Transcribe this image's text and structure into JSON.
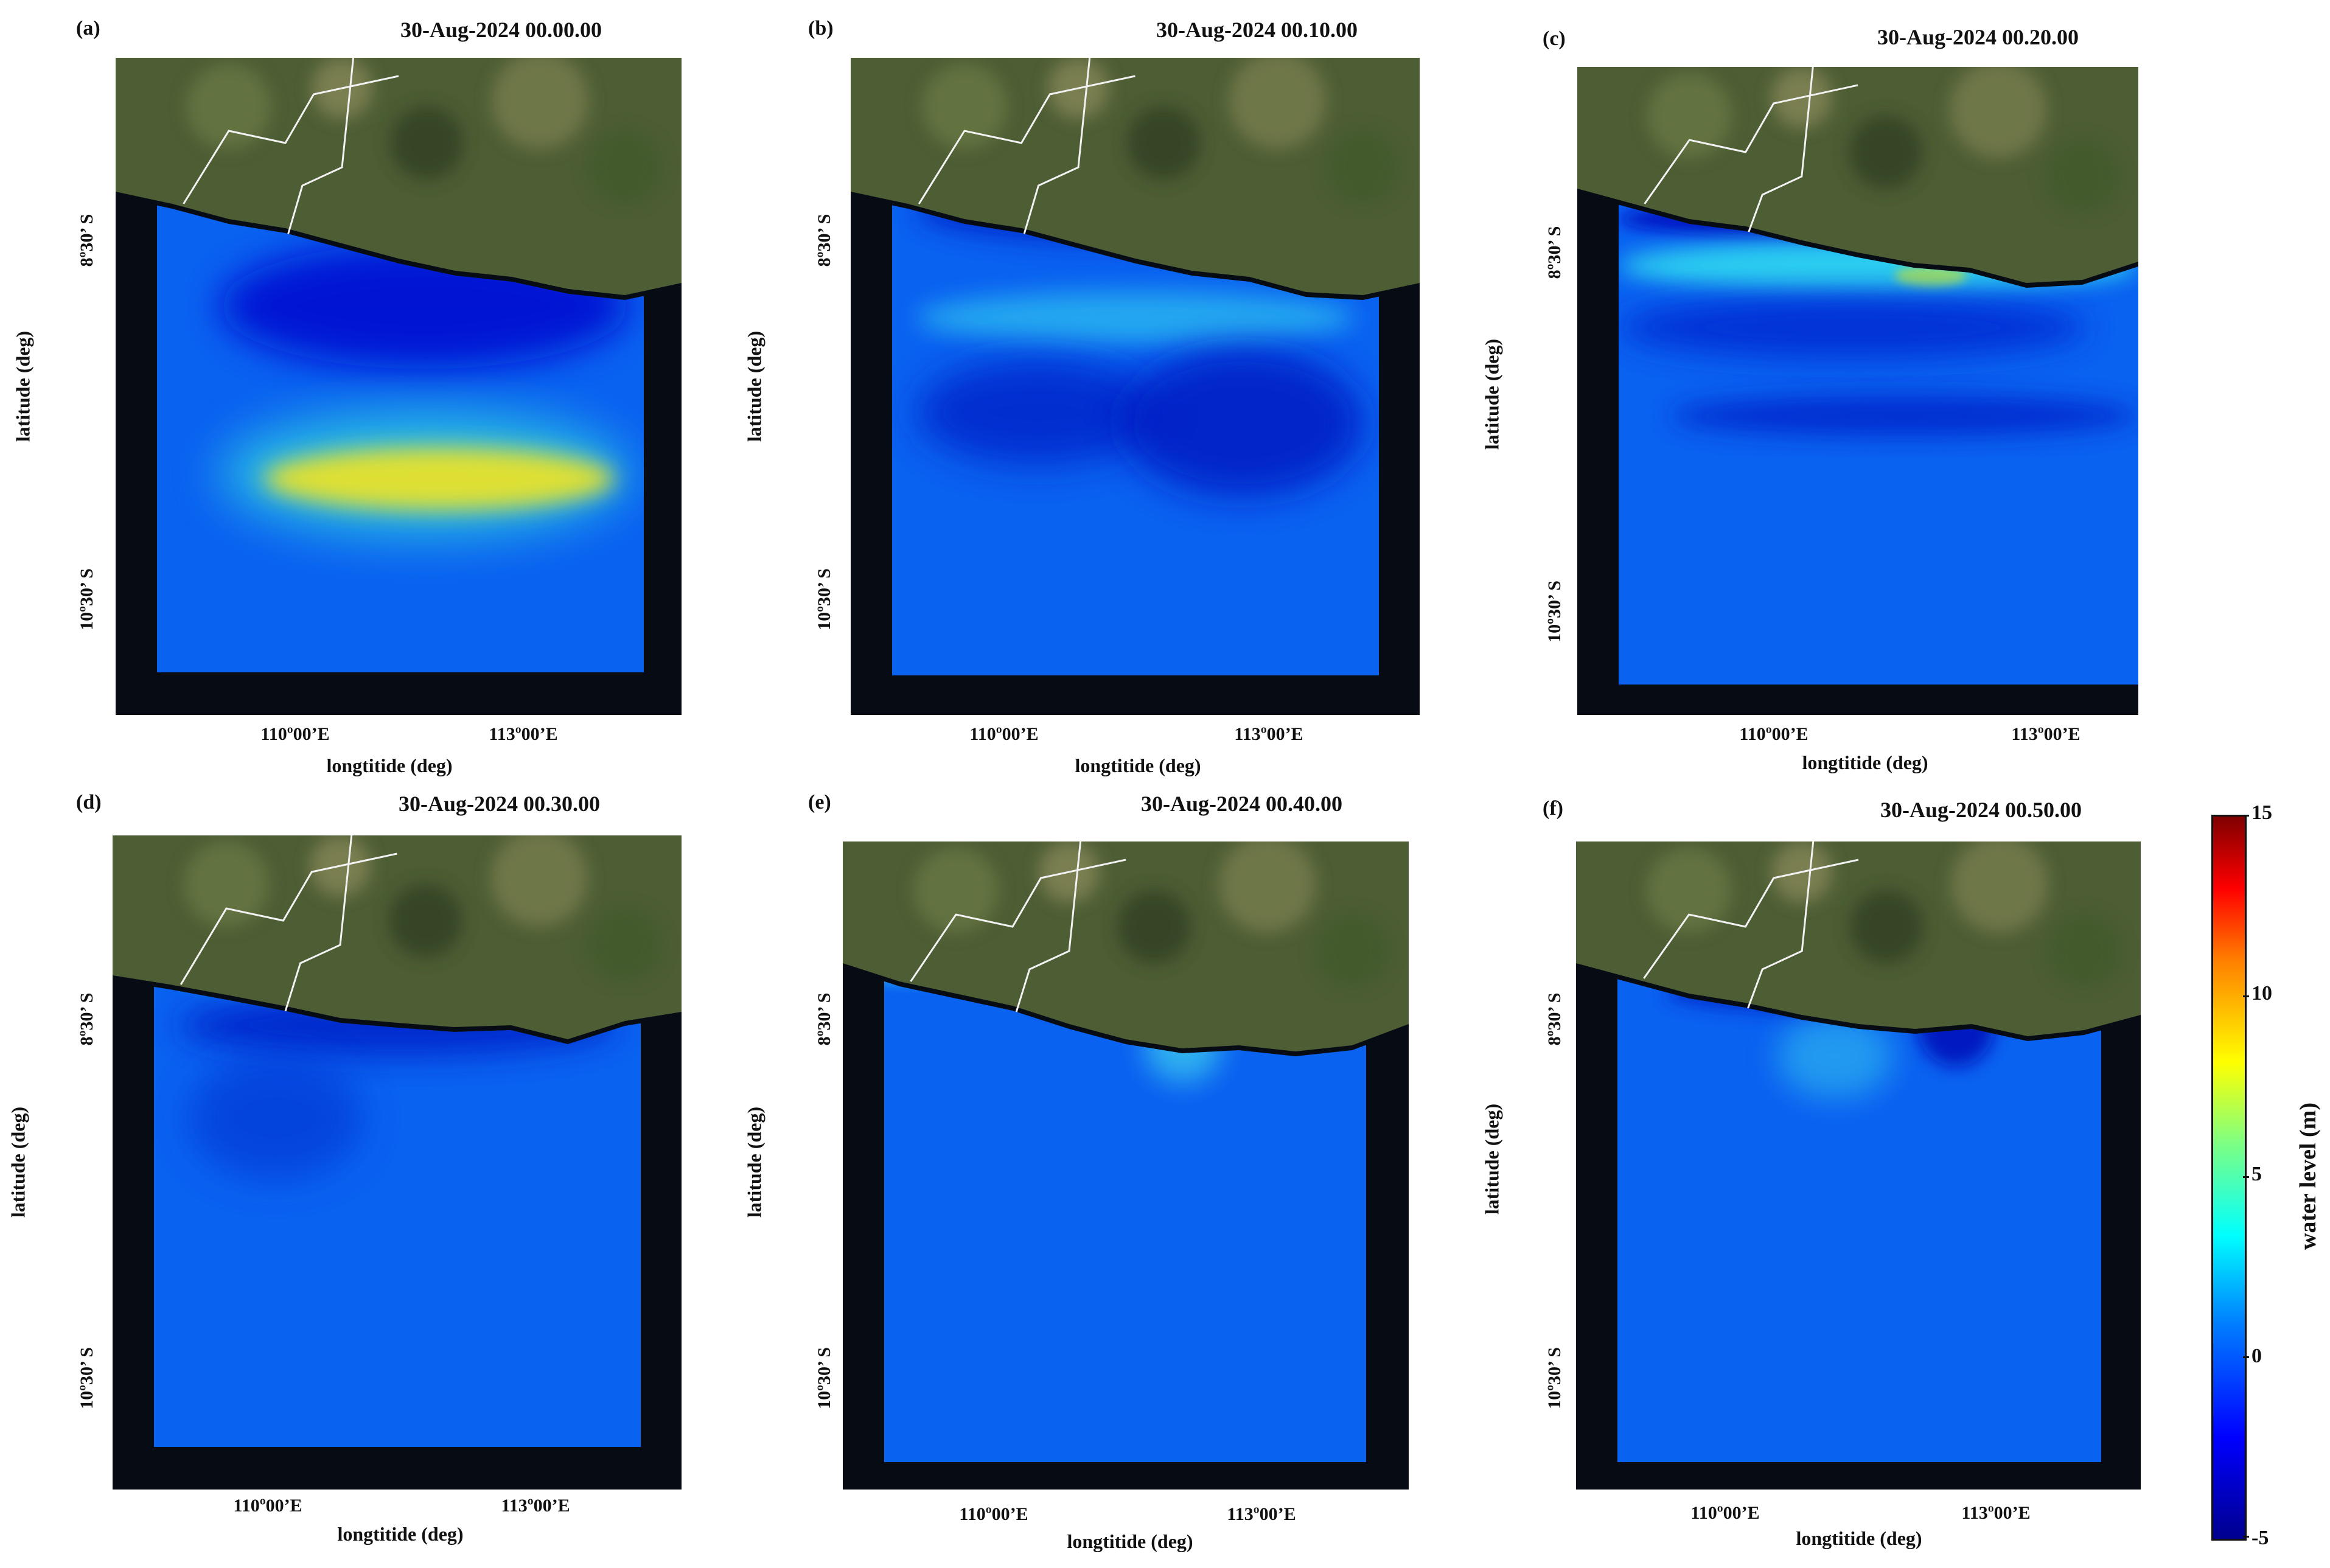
{
  "figure": {
    "x_ticks": [
      "110º00’E",
      "113º00’E"
    ],
    "x_label": "longtitide (deg)",
    "y_ticks": [
      "8º30’ S",
      "10º30’ S"
    ],
    "y_label": "latitude (deg)",
    "colorbar": {
      "label": "water level (m)",
      "ticks": [
        "15",
        "10",
        "5",
        "0",
        "-5"
      ],
      "range": [
        -5,
        15
      ],
      "colormap": [
        "#00008f",
        "#0000ff",
        "#0080ff",
        "#00ffff",
        "#80ff80",
        "#ffff00",
        "#ff8000",
        "#ff0000",
        "#800000"
      ]
    },
    "colors": {
      "background_sea": "#0a62f0",
      "land": "#4d5d34",
      "frame": "#070b14",
      "boundary_lines": "#f2f2f2"
    }
  },
  "panels": [
    {
      "label": "(a)",
      "timestamp": "30-Aug-2024 00.00.00"
    },
    {
      "label": "(b)",
      "timestamp": "30-Aug-2024 00.10.00"
    },
    {
      "label": "(c)",
      "timestamp": "30-Aug-2024 00.20.00"
    },
    {
      "label": "(d)",
      "timestamp": "30-Aug-2024 00.30.00"
    },
    {
      "label": "(e)",
      "timestamp": "30-Aug-2024 00.40.00"
    },
    {
      "label": "(f)",
      "timestamp": "30-Aug-2024 00.50.00"
    }
  ]
}
